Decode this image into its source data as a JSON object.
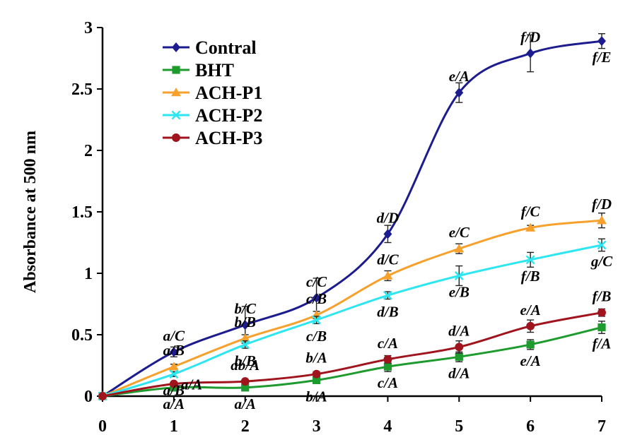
{
  "chart_data": {
    "type": "line",
    "title": "",
    "xlabel": "",
    "ylabel": "Absorbance at 500 nm",
    "x": [
      0,
      1,
      2,
      3,
      4,
      5,
      6,
      7
    ],
    "xlim": [
      0,
      7
    ],
    "ylim": [
      0,
      3
    ],
    "y_ticks": [
      "0",
      "0.5",
      "1",
      "1.5",
      "2",
      "2.5",
      "3"
    ],
    "x_ticks": [
      "0",
      "1",
      "2",
      "3",
      "4",
      "5",
      "6",
      "7"
    ],
    "grid": false,
    "legend_position": "top-left",
    "series": [
      {
        "name": "Contral",
        "color": "#1c1c8e",
        "marker": "diamond",
        "values": [
          0,
          0.36,
          0.58,
          0.8,
          1.32,
          2.47,
          2.79,
          2.89
        ],
        "errors": [
          0,
          0.04,
          0.15,
          0.16,
          0.07,
          0.08,
          0.15,
          0.06
        ]
      },
      {
        "name": "BHT",
        "color": "#1e9b2e",
        "marker": "square",
        "values": [
          0,
          0.07,
          0.07,
          0.13,
          0.24,
          0.32,
          0.42,
          0.56
        ],
        "errors": [
          0,
          0.01,
          0.01,
          0.02,
          0.04,
          0.04,
          0.04,
          0.05
        ]
      },
      {
        "name": "ACH-P1",
        "color": "#f7a12c",
        "marker": "triangle",
        "values": [
          0,
          0.24,
          0.47,
          0.66,
          0.98,
          1.2,
          1.37,
          1.43
        ],
        "errors": [
          0,
          0.02,
          0.03,
          0.03,
          0.04,
          0.04,
          0.02,
          0.06
        ]
      },
      {
        "name": "ACH-P2",
        "color": "#2ee6f0",
        "marker": "x",
        "values": [
          0,
          0.18,
          0.42,
          0.62,
          0.82,
          0.98,
          1.11,
          1.23
        ],
        "errors": [
          0,
          0.02,
          0.03,
          0.03,
          0.03,
          0.08,
          0.06,
          0.05
        ]
      },
      {
        "name": "ACH-P3",
        "color": "#a0141e",
        "marker": "circle",
        "values": [
          0,
          0.1,
          0.12,
          0.18,
          0.3,
          0.4,
          0.57,
          0.68
        ],
        "errors": [
          0,
          0.01,
          0.01,
          0.02,
          0.03,
          0.05,
          0.05,
          0.03
        ]
      }
    ],
    "annotations": [
      {
        "text": "a/C",
        "x": 1,
        "y": 0.36,
        "place": "above"
      },
      {
        "text": "a/B",
        "x": 1,
        "y": 0.24,
        "place": "above"
      },
      {
        "text": "a/B",
        "x": 1,
        "y": 0.18,
        "place": "below"
      },
      {
        "text": "a/A",
        "x": 1,
        "y": 0.1,
        "place": "right"
      },
      {
        "text": "a/A",
        "x": 1,
        "y": 0.07,
        "place": "below"
      },
      {
        "text": "b/C",
        "x": 2,
        "y": 0.58,
        "place": "above"
      },
      {
        "text": "b/B",
        "x": 2,
        "y": 0.47,
        "place": "above"
      },
      {
        "text": "b/B",
        "x": 2,
        "y": 0.42,
        "place": "below"
      },
      {
        "text": "ab/A",
        "x": 2,
        "y": 0.12,
        "place": "above"
      },
      {
        "text": "a/A",
        "x": 2,
        "y": 0.07,
        "place": "below"
      },
      {
        "text": "c/C",
        "x": 3,
        "y": 0.8,
        "place": "above"
      },
      {
        "text": "c/B",
        "x": 3,
        "y": 0.66,
        "place": "above"
      },
      {
        "text": "c/B",
        "x": 3,
        "y": 0.62,
        "place": "below"
      },
      {
        "text": "b/A",
        "x": 3,
        "y": 0.18,
        "place": "above"
      },
      {
        "text": "b/A",
        "x": 3,
        "y": 0.13,
        "place": "below"
      },
      {
        "text": "d/D",
        "x": 4,
        "y": 1.32,
        "place": "above"
      },
      {
        "text": "d/C",
        "x": 4,
        "y": 0.98,
        "place": "above"
      },
      {
        "text": "d/B",
        "x": 4,
        "y": 0.82,
        "place": "below"
      },
      {
        "text": "c/A",
        "x": 4,
        "y": 0.3,
        "place": "above"
      },
      {
        "text": "c/A",
        "x": 4,
        "y": 0.24,
        "place": "below"
      },
      {
        "text": "e/A",
        "x": 5,
        "y": 2.47,
        "place": "above"
      },
      {
        "text": "e/C",
        "x": 5,
        "y": 1.2,
        "place": "above"
      },
      {
        "text": "e/B",
        "x": 5,
        "y": 0.98,
        "place": "below"
      },
      {
        "text": "d/A",
        "x": 5,
        "y": 0.4,
        "place": "above"
      },
      {
        "text": "d/A",
        "x": 5,
        "y": 0.32,
        "place": "below"
      },
      {
        "text": "f/D",
        "x": 6,
        "y": 2.79,
        "place": "above"
      },
      {
        "text": "f/C",
        "x": 6,
        "y": 1.37,
        "place": "above"
      },
      {
        "text": "f/B",
        "x": 6,
        "y": 1.11,
        "place": "below"
      },
      {
        "text": "e/A",
        "x": 6,
        "y": 0.57,
        "place": "above"
      },
      {
        "text": "e/A",
        "x": 6,
        "y": 0.42,
        "place": "below"
      },
      {
        "text": "f/E",
        "x": 7,
        "y": 2.89,
        "place": "below"
      },
      {
        "text": "f/D",
        "x": 7,
        "y": 1.43,
        "place": "above"
      },
      {
        "text": "g/C",
        "x": 7,
        "y": 1.23,
        "place": "below"
      },
      {
        "text": "f/B",
        "x": 7,
        "y": 0.68,
        "place": "above"
      },
      {
        "text": "f/A",
        "x": 7,
        "y": 0.56,
        "place": "below"
      }
    ]
  }
}
